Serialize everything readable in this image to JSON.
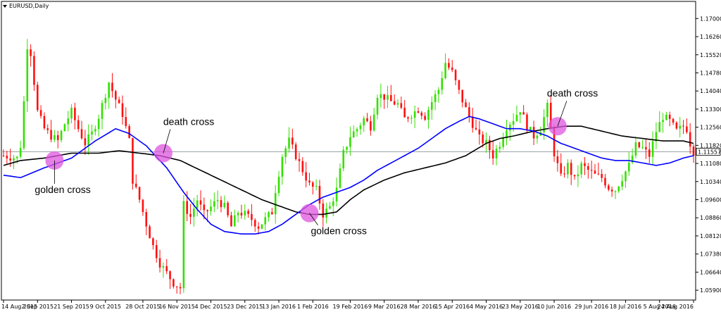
{
  "chart_data": {
    "type": "candlestick",
    "title": "EURUSD,Daily",
    "current_price": 1.11557,
    "price_line_color": "#9aa3a8",
    "colors": {
      "bull": "#33e000",
      "bear": "#ff1010",
      "ma_fast": "#0000ff",
      "ma_slow": "#000000",
      "marker": "#dd55dd",
      "background": "#ffffff",
      "price_label_bg": "#ffffff"
    },
    "y_axis": {
      "min": 1.055,
      "max": 1.177,
      "tick_labels": [
        "1.17000",
        "1.16260",
        "1.15520",
        "1.14780",
        "1.14040",
        "1.13300",
        "1.12560",
        "1.11820",
        "1.11080",
        "1.10340",
        "1.09600",
        "1.08860",
        "1.08120",
        "1.07380",
        "1.06640",
        "1.05900"
      ]
    },
    "x_axis": {
      "tick_labels": [
        "14 Aug 2015",
        "2 Sep 2015",
        "21 Sep 2015",
        "9 Oct 2015",
        "28 Oct 2015",
        "16 Nov 2015",
        "4 Dec 2015",
        "23 Dec 2015",
        "13 Jan 2016",
        "1 Feb 2016",
        "19 Feb 2016",
        "9 Mar 2016",
        "28 Mar 2016",
        "15 Apr 2016",
        "4 May 2016",
        "23 May 2016",
        "10 Jun 2016",
        "29 Jun 2016",
        "18 Jul 2016",
        "5 Aug 2016",
        "24 Aug 2016"
      ]
    },
    "close_path": [
      [
        0,
        1.114
      ],
      [
        4,
        1.113
      ],
      [
        5,
        1.118
      ],
      [
        6,
        1.136
      ],
      [
        7,
        1.159
      ],
      [
        8,
        1.156
      ],
      [
        10,
        1.132
      ],
      [
        12,
        1.125
      ],
      [
        14,
        1.122
      ],
      [
        16,
        1.12
      ],
      [
        18,
        1.127
      ],
      [
        20,
        1.132
      ],
      [
        22,
        1.125
      ],
      [
        24,
        1.119
      ],
      [
        26,
        1.123
      ],
      [
        28,
        1.13
      ],
      [
        31,
        1.144
      ],
      [
        33,
        1.137
      ],
      [
        35,
        1.131
      ],
      [
        37,
        1.12
      ],
      [
        38,
        1.104
      ],
      [
        40,
        1.096
      ],
      [
        42,
        1.086
      ],
      [
        44,
        1.077
      ],
      [
        46,
        1.07
      ],
      [
        48,
        1.066
      ],
      [
        50,
        1.062
      ],
      [
        52,
        1.06
      ],
      [
        53,
        1.094
      ],
      [
        55,
        1.089
      ],
      [
        57,
        1.096
      ],
      [
        59,
        1.09
      ],
      [
        61,
        1.093
      ],
      [
        63,
        1.096
      ],
      [
        65,
        1.093
      ],
      [
        67,
        1.085
      ],
      [
        69,
        1.091
      ],
      [
        71,
        1.09
      ],
      [
        73,
        1.088
      ],
      [
        75,
        1.085
      ],
      [
        77,
        1.088
      ],
      [
        79,
        1.091
      ],
      [
        80,
        1.1
      ],
      [
        82,
        1.114
      ],
      [
        84,
        1.12
      ],
      [
        86,
        1.114
      ],
      [
        88,
        1.108
      ],
      [
        90,
        1.102
      ],
      [
        92,
        1.1
      ],
      [
        94,
        1.09
      ],
      [
        96,
        1.093
      ],
      [
        98,
        1.1
      ],
      [
        100,
        1.115
      ],
      [
        102,
        1.122
      ],
      [
        104,
        1.125
      ],
      [
        106,
        1.129
      ],
      [
        108,
        1.126
      ],
      [
        110,
        1.139
      ],
      [
        112,
        1.138
      ],
      [
        114,
        1.136
      ],
      [
        116,
        1.135
      ],
      [
        118,
        1.129
      ],
      [
        120,
        1.131
      ],
      [
        122,
        1.133
      ],
      [
        124,
        1.13
      ],
      [
        126,
        1.136
      ],
      [
        128,
        1.141
      ],
      [
        130,
        1.152
      ],
      [
        132,
        1.148
      ],
      [
        134,
        1.14
      ],
      [
        136,
        1.133
      ],
      [
        138,
        1.127
      ],
      [
        140,
        1.121
      ],
      [
        142,
        1.119
      ],
      [
        144,
        1.114
      ],
      [
        146,
        1.119
      ],
      [
        148,
        1.126
      ],
      [
        150,
        1.129
      ],
      [
        152,
        1.133
      ],
      [
        154,
        1.126
      ],
      [
        156,
        1.122
      ],
      [
        158,
        1.125
      ],
      [
        160,
        1.134
      ],
      [
        162,
        1.115
      ],
      [
        164,
        1.105
      ],
      [
        166,
        1.11
      ],
      [
        168,
        1.104
      ],
      [
        170,
        1.11
      ],
      [
        172,
        1.108
      ],
      [
        174,
        1.106
      ],
      [
        176,
        1.105
      ],
      [
        178,
        1.101
      ],
      [
        180,
        1.1
      ],
      [
        182,
        1.105
      ],
      [
        184,
        1.11
      ],
      [
        186,
        1.118
      ],
      [
        188,
        1.117
      ],
      [
        190,
        1.114
      ],
      [
        192,
        1.124
      ],
      [
        194,
        1.13
      ],
      [
        196,
        1.128
      ],
      [
        198,
        1.124
      ],
      [
        200,
        1.126
      ],
      [
        201,
        1.125
      ],
      [
        202,
        1.119
      ],
      [
        203,
        1.1156
      ]
    ],
    "ma_fast": [
      [
        0,
        1.106
      ],
      [
        5,
        1.105
      ],
      [
        12,
        1.109
      ],
      [
        20,
        1.113
      ],
      [
        27,
        1.12
      ],
      [
        33,
        1.125
      ],
      [
        37,
        1.123
      ],
      [
        42,
        1.118
      ],
      [
        48,
        1.109
      ],
      [
        53,
        1.099
      ],
      [
        57,
        1.092
      ],
      [
        61,
        1.086
      ],
      [
        65,
        1.083
      ],
      [
        70,
        1.082
      ],
      [
        74,
        1.082
      ],
      [
        78,
        1.083
      ],
      [
        82,
        1.086
      ],
      [
        86,
        1.09
      ],
      [
        90,
        1.094
      ],
      [
        94,
        1.097
      ],
      [
        98,
        1.099
      ],
      [
        102,
        1.101
      ],
      [
        106,
        1.104
      ],
      [
        110,
        1.108
      ],
      [
        114,
        1.111
      ],
      [
        118,
        1.114
      ],
      [
        122,
        1.117
      ],
      [
        126,
        1.121
      ],
      [
        130,
        1.125
      ],
      [
        134,
        1.128
      ],
      [
        137,
        1.13
      ],
      [
        140,
        1.129
      ],
      [
        144,
        1.127
      ],
      [
        148,
        1.125
      ],
      [
        152,
        1.125
      ],
      [
        156,
        1.124
      ],
      [
        160,
        1.122
      ],
      [
        164,
        1.119
      ],
      [
        168,
        1.117
      ],
      [
        172,
        1.115
      ],
      [
        176,
        1.113
      ],
      [
        180,
        1.112
      ],
      [
        184,
        1.112
      ],
      [
        188,
        1.111
      ],
      [
        192,
        1.11
      ],
      [
        196,
        1.111
      ],
      [
        200,
        1.113
      ],
      [
        203,
        1.114
      ]
    ],
    "ma_slow": [
      [
        0,
        1.11
      ],
      [
        5,
        1.112
      ],
      [
        12,
        1.113
      ],
      [
        20,
        1.115
      ],
      [
        28,
        1.115
      ],
      [
        34,
        1.116
      ],
      [
        40,
        1.115
      ],
      [
        46,
        1.114
      ],
      [
        52,
        1.112
      ],
      [
        58,
        1.108
      ],
      [
        64,
        1.104
      ],
      [
        70,
        1.1
      ],
      [
        76,
        1.096
      ],
      [
        82,
        1.093
      ],
      [
        86,
        1.091
      ],
      [
        90,
        1.09
      ],
      [
        94,
        1.09
      ],
      [
        98,
        1.091
      ],
      [
        102,
        1.096
      ],
      [
        106,
        1.1
      ],
      [
        112,
        1.104
      ],
      [
        118,
        1.107
      ],
      [
        124,
        1.109
      ],
      [
        130,
        1.111
      ],
      [
        136,
        1.114
      ],
      [
        142,
        1.119
      ],
      [
        146,
        1.121
      ],
      [
        150,
        1.122
      ],
      [
        156,
        1.124
      ],
      [
        160,
        1.125
      ],
      [
        165,
        1.126
      ],
      [
        170,
        1.126
      ],
      [
        176,
        1.124
      ],
      [
        182,
        1.122
      ],
      [
        188,
        1.121
      ],
      [
        194,
        1.12
      ],
      [
        200,
        1.12
      ],
      [
        203,
        1.119
      ]
    ],
    "annotations": [
      {
        "label": "golden cross",
        "x": 15,
        "price": 1.112,
        "text_dx": -28,
        "text_dy": 46
      },
      {
        "label": "death cross",
        "x": 47,
        "price": 1.115,
        "text_dx": 0,
        "text_dy": -40
      },
      {
        "label": "golden cross",
        "x": 90,
        "price": 1.0905,
        "text_dx": 2,
        "text_dy": 30
      },
      {
        "label": "death cross",
        "x": 163,
        "price": 1.126,
        "text_dx": -15,
        "text_dy": -42
      }
    ]
  }
}
